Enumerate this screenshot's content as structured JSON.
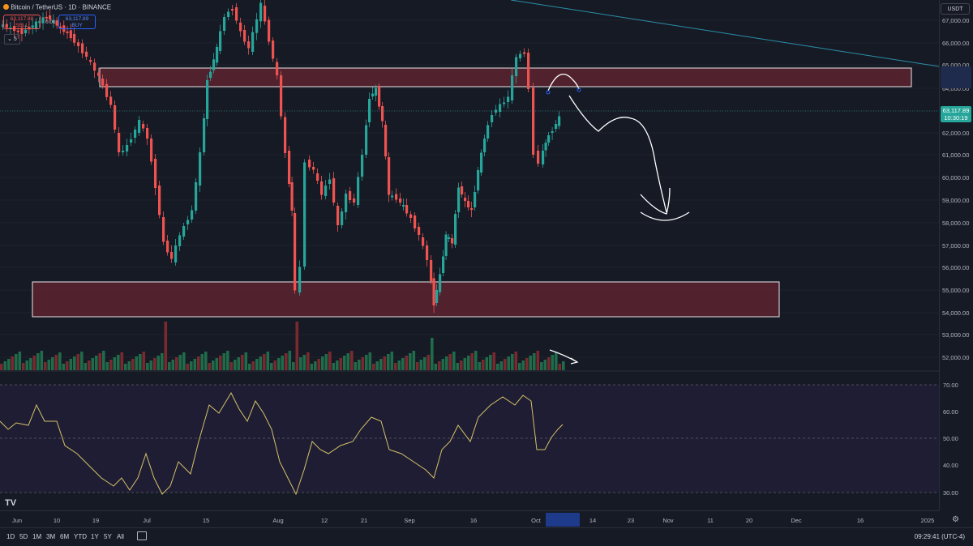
{
  "symbol": {
    "title": "Bitcoin / TetherUS · 1D · BINANCE",
    "sell_price": "63,117.88",
    "sell_label": "SELL",
    "spread": "0.01",
    "buy_price": "63,117.89",
    "buy_label": "BUY",
    "indicator_count": "5"
  },
  "price_axis": {
    "currency": "USDT",
    "ticks": [
      "67,000.00",
      "66,000.00",
      "65,000.00",
      "64,000.00",
      "63,000.00",
      "62,000.00",
      "61,000.00",
      "60,000.00",
      "59,000.00",
      "58,000.00",
      "57,000.00",
      "56,000.00",
      "55,000.00",
      "54,000.00",
      "53,000.00",
      "52,000.00"
    ],
    "last_price": "63,117.89",
    "countdown": "10:30:19"
  },
  "rsi_axis": {
    "ticks": [
      "70.00",
      "60.00",
      "50.00",
      "40.00",
      "30.00"
    ]
  },
  "time_axis": {
    "labels": [
      "Jun",
      "10",
      "19",
      "Jul",
      "15",
      "Aug",
      "12",
      "21",
      "Sep",
      "16",
      "Oct",
      "14",
      "23",
      "Nov",
      "11",
      "20",
      "Dec",
      "16",
      "2025"
    ]
  },
  "bottom_bar": {
    "timeframes": [
      "1D",
      "5D",
      "1M",
      "3M",
      "6M",
      "YTD",
      "1Y",
      "5Y",
      "All"
    ],
    "clock": "09:29:41 (UTC-4)"
  },
  "watermark": "TV",
  "colors": {
    "bg": "#161a25",
    "up": "#26a69a",
    "down": "#ef5350",
    "zone_fill": "#5c2530",
    "rsi_line": "#d4c26a",
    "trendline": "#2a8fa8"
  },
  "icons": [
    "calendar-range-icon",
    "settings-icon",
    "chart-logo-icon"
  ]
}
